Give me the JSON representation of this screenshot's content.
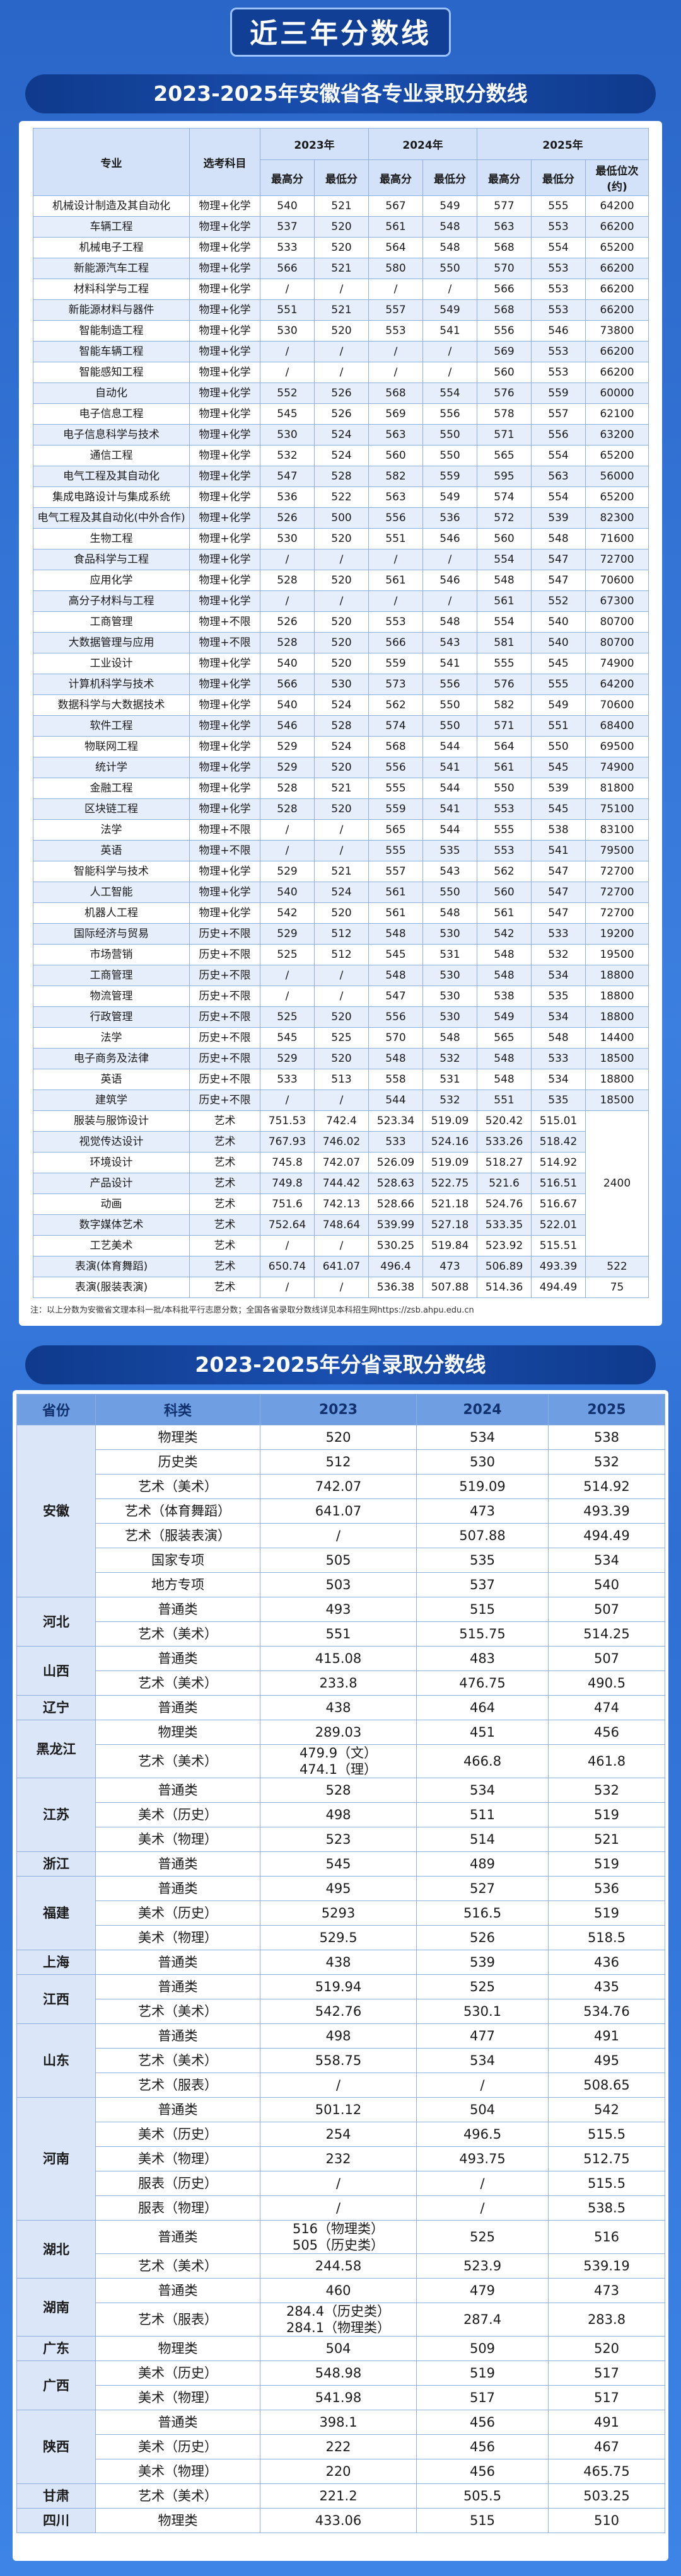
{
  "banner": "近三年分数线",
  "table1": {
    "title": "2023-2025年安徽省各专业录取分数线",
    "header": {
      "major": "专业",
      "subject": "选考科目",
      "years": [
        "2023年",
        "2024年",
        "2025年"
      ],
      "sub": [
        "最高分",
        "最低分",
        "最高分",
        "最低分",
        "最高分",
        "最低分",
        "最低位次(约)"
      ]
    },
    "rows": [
      [
        "机械设计制造及其自动化",
        "物理+化学",
        "540",
        "521",
        "567",
        "549",
        "577",
        "555",
        "64200"
      ],
      [
        "车辆工程",
        "物理+化学",
        "537",
        "520",
        "561",
        "548",
        "563",
        "553",
        "66200"
      ],
      [
        "机械电子工程",
        "物理+化学",
        "533",
        "520",
        "564",
        "548",
        "568",
        "554",
        "65200"
      ],
      [
        "新能源汽车工程",
        "物理+化学",
        "566",
        "521",
        "580",
        "550",
        "570",
        "553",
        "66200"
      ],
      [
        "材料科学与工程",
        "物理+化学",
        "/",
        "/",
        "/",
        "/",
        "566",
        "553",
        "66200"
      ],
      [
        "新能源材料与器件",
        "物理+化学",
        "551",
        "521",
        "557",
        "549",
        "568",
        "553",
        "66200"
      ],
      [
        "智能制造工程",
        "物理+化学",
        "530",
        "520",
        "553",
        "541",
        "556",
        "546",
        "73800"
      ],
      [
        "智能车辆工程",
        "物理+化学",
        "/",
        "/",
        "/",
        "/",
        "569",
        "553",
        "66200"
      ],
      [
        "智能感知工程",
        "物理+化学",
        "/",
        "/",
        "/",
        "/",
        "560",
        "553",
        "66200"
      ],
      [
        "自动化",
        "物理+化学",
        "552",
        "526",
        "568",
        "554",
        "576",
        "559",
        "60000"
      ],
      [
        "电子信息工程",
        "物理+化学",
        "545",
        "526",
        "569",
        "556",
        "578",
        "557",
        "62100"
      ],
      [
        "电子信息科学与技术",
        "物理+化学",
        "530",
        "524",
        "563",
        "550",
        "571",
        "556",
        "63200"
      ],
      [
        "通信工程",
        "物理+化学",
        "532",
        "524",
        "560",
        "550",
        "565",
        "554",
        "65200"
      ],
      [
        "电气工程及其自动化",
        "物理+化学",
        "547",
        "528",
        "582",
        "559",
        "595",
        "563",
        "56000"
      ],
      [
        "集成电路设计与集成系统",
        "物理+化学",
        "536",
        "522",
        "563",
        "549",
        "574",
        "554",
        "65200"
      ],
      [
        "电气工程及其自动化(中外合作)",
        "物理+化学",
        "526",
        "500",
        "556",
        "536",
        "572",
        "539",
        "82300"
      ],
      [
        "生物工程",
        "物理+化学",
        "530",
        "520",
        "551",
        "546",
        "560",
        "548",
        "71600"
      ],
      [
        "食品科学与工程",
        "物理+化学",
        "/",
        "/",
        "/",
        "/",
        "554",
        "547",
        "72700"
      ],
      [
        "应用化学",
        "物理+化学",
        "528",
        "520",
        "561",
        "546",
        "548",
        "547",
        "70600"
      ],
      [
        "高分子材料与工程",
        "物理+化学",
        "/",
        "/",
        "/",
        "/",
        "561",
        "552",
        "67300"
      ],
      [
        "工商管理",
        "物理+不限",
        "526",
        "520",
        "553",
        "548",
        "554",
        "540",
        "80700"
      ],
      [
        "大数据管理与应用",
        "物理+不限",
        "528",
        "520",
        "566",
        "543",
        "581",
        "540",
        "80700"
      ],
      [
        "工业设计",
        "物理+化学",
        "540",
        "520",
        "559",
        "541",
        "555",
        "545",
        "74900"
      ],
      [
        "计算机科学与技术",
        "物理+化学",
        "566",
        "530",
        "573",
        "556",
        "576",
        "555",
        "64200"
      ],
      [
        "数据科学与大数据技术",
        "物理+化学",
        "540",
        "524",
        "562",
        "550",
        "582",
        "549",
        "70600"
      ],
      [
        "软件工程",
        "物理+化学",
        "546",
        "528",
        "574",
        "550",
        "571",
        "551",
        "68400"
      ],
      [
        "物联网工程",
        "物理+化学",
        "529",
        "524",
        "568",
        "544",
        "564",
        "550",
        "69500"
      ],
      [
        "统计学",
        "物理+化学",
        "529",
        "520",
        "556",
        "541",
        "561",
        "545",
        "74900"
      ],
      [
        "金融工程",
        "物理+化学",
        "528",
        "521",
        "555",
        "544",
        "550",
        "539",
        "81800"
      ],
      [
        "区块链工程",
        "物理+化学",
        "528",
        "520",
        "559",
        "541",
        "553",
        "545",
        "75100"
      ],
      [
        "法学",
        "物理+不限",
        "/",
        "/",
        "565",
        "544",
        "555",
        "538",
        "83100"
      ],
      [
        "英语",
        "物理+不限",
        "/",
        "/",
        "555",
        "535",
        "553",
        "541",
        "79500"
      ],
      [
        "智能科学与技术",
        "物理+化学",
        "529",
        "521",
        "557",
        "543",
        "562",
        "547",
        "72700"
      ],
      [
        "人工智能",
        "物理+化学",
        "540",
        "524",
        "561",
        "550",
        "560",
        "547",
        "72700"
      ],
      [
        "机器人工程",
        "物理+化学",
        "542",
        "520",
        "561",
        "548",
        "561",
        "547",
        "72700"
      ],
      [
        "国际经济与贸易",
        "历史+不限",
        "529",
        "512",
        "548",
        "530",
        "542",
        "533",
        "19200"
      ],
      [
        "市场营销",
        "历史+不限",
        "525",
        "512",
        "545",
        "531",
        "548",
        "532",
        "19500"
      ],
      [
        "工商管理",
        "历史+不限",
        "/",
        "/",
        "548",
        "530",
        "548",
        "534",
        "18800"
      ],
      [
        "物流管理",
        "历史+不限",
        "/",
        "/",
        "547",
        "530",
        "538",
        "535",
        "18800"
      ],
      [
        "行政管理",
        "历史+不限",
        "525",
        "520",
        "556",
        "530",
        "549",
        "534",
        "18800"
      ],
      [
        "法学",
        "历史+不限",
        "545",
        "525",
        "570",
        "548",
        "565",
        "548",
        "14400"
      ],
      [
        "电子商务及法律",
        "历史+不限",
        "529",
        "520",
        "548",
        "532",
        "548",
        "533",
        "18500"
      ],
      [
        "英语",
        "历史+不限",
        "533",
        "513",
        "558",
        "531",
        "548",
        "534",
        "18800"
      ],
      [
        "建筑学",
        "历史+不限",
        "/",
        "/",
        "544",
        "532",
        "551",
        "535",
        "18500"
      ],
      [
        "服装与服饰设计",
        "艺术",
        "751.53",
        "742.4",
        "523.34",
        "519.09",
        "520.42",
        "515.01",
        "2400"
      ],
      [
        "视觉传达设计",
        "艺术",
        "767.93",
        "746.02",
        "533",
        "524.16",
        "533.26",
        "518.42"
      ],
      [
        "环境设计",
        "艺术",
        "745.8",
        "742.07",
        "526.09",
        "519.09",
        "518.27",
        "514.92"
      ],
      [
        "产品设计",
        "艺术",
        "749.8",
        "744.42",
        "528.63",
        "522.75",
        "521.6",
        "516.51"
      ],
      [
        "动画",
        "艺术",
        "751.6",
        "742.13",
        "528.66",
        "521.18",
        "524.76",
        "516.67"
      ],
      [
        "数字媒体艺术",
        "艺术",
        "752.64",
        "748.64",
        "539.99",
        "527.18",
        "533.35",
        "522.01"
      ],
      [
        "工艺美术",
        "艺术",
        "/",
        "/",
        "530.25",
        "519.84",
        "523.92",
        "515.51"
      ],
      [
        "表演(体育舞蹈)",
        "艺术",
        "650.74",
        "641.07",
        "496.4",
        "473",
        "506.89",
        "493.39",
        "522"
      ],
      [
        "表演(服装表演)",
        "艺术",
        "/",
        "/",
        "536.38",
        "507.88",
        "514.36",
        "494.49",
        "75"
      ]
    ],
    "note": "注：以上分数为安徽省文理本科一批/本科批平行志愿分数；全国各省录取分数线详见本科招生网https://zsb.ahpu.edu.cn"
  },
  "table2": {
    "title": "2023-2025年分省录取分数线",
    "header": [
      "省份",
      "科类",
      "2023",
      "2024",
      "2025"
    ],
    "groups": [
      {
        "province": "安徽",
        "rows": [
          [
            "物理类",
            "520",
            "534",
            "538"
          ],
          [
            "历史类",
            "512",
            "530",
            "532"
          ],
          [
            "艺术（美术）",
            "742.07",
            "519.09",
            "514.92"
          ],
          [
            "艺术（体育舞蹈）",
            "641.07",
            "473",
            "493.39"
          ],
          [
            "艺术（服装表演）",
            "/",
            "507.88",
            "494.49"
          ],
          [
            "国家专项",
            "505",
            "535",
            "534"
          ],
          [
            "地方专项",
            "503",
            "537",
            "540"
          ]
        ]
      },
      {
        "province": "河北",
        "rows": [
          [
            "普通类",
            "493",
            "515",
            "507"
          ],
          [
            "艺术（美术）",
            "551",
            "515.75",
            "514.25"
          ]
        ]
      },
      {
        "province": "山西",
        "rows": [
          [
            "普通类",
            "415.08",
            "483",
            "507"
          ],
          [
            "艺术（美术）",
            "233.8",
            "476.75",
            "490.5"
          ]
        ]
      },
      {
        "province": "辽宁",
        "rows": [
          [
            "普通类",
            "438",
            "464",
            "474"
          ]
        ]
      },
      {
        "province": "黑龙江",
        "rows": [
          [
            "物理类",
            "289.03",
            "451",
            "456"
          ],
          [
            "艺术（美术）",
            [
              "479.9（文）",
              "474.1（理）"
            ],
            "466.8",
            "461.8"
          ]
        ]
      },
      {
        "province": "江苏",
        "rows": [
          [
            "普通类",
            "528",
            "534",
            "532"
          ],
          [
            "美术（历史）",
            "498",
            "511",
            "519"
          ],
          [
            "美术（物理）",
            "523",
            "514",
            "521"
          ]
        ]
      },
      {
        "province": "浙江",
        "rows": [
          [
            "普通类",
            "545",
            "489",
            "519"
          ]
        ]
      },
      {
        "province": "福建",
        "rows": [
          [
            "普通类",
            "495",
            "527",
            "536"
          ],
          [
            "美术（历史）",
            "5293",
            "516.5",
            "519"
          ],
          [
            "美术（物理）",
            "529.5",
            "526",
            "518.5"
          ]
        ]
      },
      {
        "province": "上海",
        "rows": [
          [
            "普通类",
            "438",
            "539",
            "436"
          ]
        ]
      },
      {
        "province": "江西",
        "rows": [
          [
            "普通类",
            "519.94",
            "525",
            "435"
          ],
          [
            "艺术（美术）",
            "542.76",
            "530.1",
            "534.76"
          ]
        ]
      },
      {
        "province": "山东",
        "rows": [
          [
            "普通类",
            "498",
            "477",
            "491"
          ],
          [
            "艺术（美术）",
            "558.75",
            "534",
            "495"
          ],
          [
            "艺术（服表）",
            "/",
            "/",
            "508.65"
          ]
        ]
      },
      {
        "province": "河南",
        "rows": [
          [
            "普通类",
            "501.12",
            "504",
            "542"
          ],
          [
            "美术（历史）",
            "254",
            "496.5",
            "515.5"
          ],
          [
            "美术（物理）",
            "232",
            "493.75",
            "512.75"
          ],
          [
            "服表（历史）",
            "/",
            "/",
            "515.5"
          ],
          [
            "服表（物理）",
            "/",
            "/",
            "538.5"
          ]
        ]
      },
      {
        "province": "湖北",
        "rows": [
          [
            "普通类",
            [
              "516（物理类）",
              "505（历史类）"
            ],
            "525",
            "516"
          ],
          [
            "艺术（美术）",
            "244.58",
            "523.9",
            "539.19"
          ]
        ]
      },
      {
        "province": "湖南",
        "rows": [
          [
            "普通类",
            "460",
            "479",
            "473"
          ],
          [
            "艺术（服表）",
            [
              "284.4（历史类）",
              "284.1（物理类）"
            ],
            "287.4",
            "283.8"
          ]
        ]
      },
      {
        "province": "广东",
        "rows": [
          [
            "物理类",
            "504",
            "509",
            "520"
          ]
        ]
      },
      {
        "province": "广西",
        "rows": [
          [
            "美术（历史）",
            "548.98",
            "519",
            "517"
          ],
          [
            "美术（物理）",
            "541.98",
            "517",
            "517"
          ]
        ]
      },
      {
        "province": "陕西",
        "rows": [
          [
            "普通类",
            "398.1",
            "456",
            "491"
          ],
          [
            "美术（历史）",
            "222",
            "456",
            "467"
          ],
          [
            "美术（物理）",
            "220",
            "456",
            "465.75"
          ]
        ]
      },
      {
        "province": "甘肃",
        "rows": [
          [
            "艺术（美术）",
            "221.2",
            "505.5",
            "503.25"
          ]
        ]
      },
      {
        "province": "四川",
        "rows": [
          [
            "物理类",
            "433.06",
            "515",
            "510"
          ]
        ]
      }
    ]
  }
}
